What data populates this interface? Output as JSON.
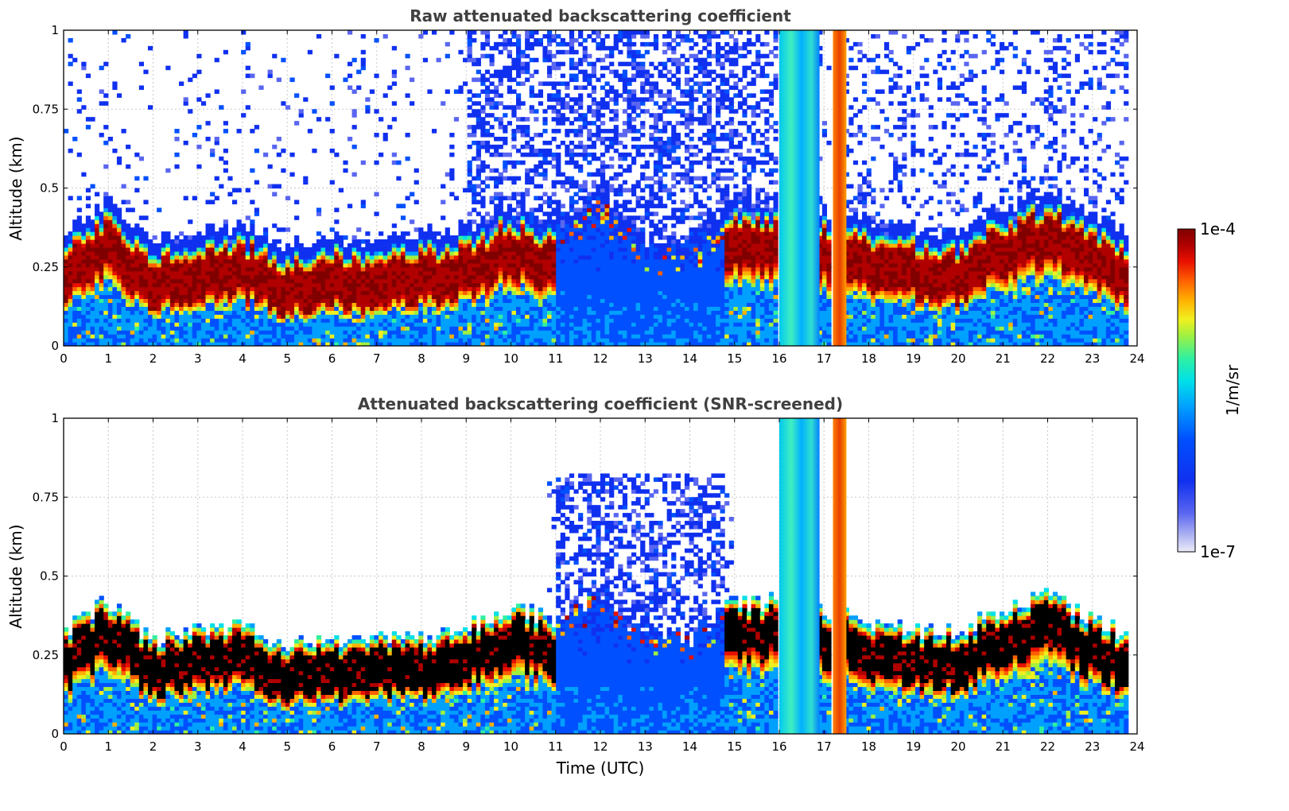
{
  "chart_data": [
    {
      "type": "heatmap",
      "title": "Raw attenuated backscattering coefficient",
      "xlabel": "",
      "ylabel": "Altitude (km)",
      "xlim": [
        0,
        24
      ],
      "ylim": [
        0,
        1
      ],
      "xticks": [
        "0",
        "1",
        "2",
        "3",
        "4",
        "5",
        "6",
        "7",
        "8",
        "9",
        "10",
        "11",
        "12",
        "13",
        "14",
        "15",
        "16",
        "17",
        "18",
        "19",
        "20",
        "21",
        "22",
        "23",
        "24"
      ],
      "yticks": [
        "0",
        "0.25",
        "0.5",
        "0.75",
        "1"
      ],
      "grid": true,
      "screened": false,
      "layer_top_km": {
        "hours": [
          0,
          1,
          2,
          3,
          4,
          5,
          6,
          7,
          8,
          9,
          10,
          11,
          12,
          13,
          14,
          15,
          16,
          18,
          19,
          20,
          21,
          22,
          23,
          23.8
        ],
        "values": [
          0.32,
          0.42,
          0.3,
          0.33,
          0.34,
          0.28,
          0.3,
          0.3,
          0.31,
          0.34,
          0.4,
          0.36,
          0.45,
          0.3,
          0.3,
          0.42,
          0.42,
          0.36,
          0.33,
          0.32,
          0.4,
          0.45,
          0.36,
          0.32
        ]
      },
      "cloud_bands_hours": [
        [
          16.0,
          16.9
        ],
        [
          17.2,
          17.5
        ]
      ]
    },
    {
      "type": "heatmap",
      "title": "Attenuated backscattering coefficient (SNR-screened)",
      "xlabel": "Time (UTC)",
      "ylabel": "Altitude (km)",
      "xlim": [
        0,
        24
      ],
      "ylim": [
        0,
        1
      ],
      "xticks": [
        "0",
        "1",
        "2",
        "3",
        "4",
        "5",
        "6",
        "7",
        "8",
        "9",
        "10",
        "11",
        "12",
        "13",
        "14",
        "15",
        "16",
        "17",
        "18",
        "19",
        "20",
        "21",
        "22",
        "23",
        "24"
      ],
      "yticks": [
        "0",
        "0.25",
        "0.5",
        "0.75",
        "1"
      ],
      "grid": true,
      "screened": true,
      "cloud_bands_hours": [
        [
          16.0,
          16.9
        ],
        [
          17.2,
          17.5
        ]
      ]
    }
  ],
  "colorbar": {
    "label": "1/m/sr",
    "max_label": "1e-4",
    "min_label": "1e-7",
    "scale": "log",
    "colors": [
      "#ececf8",
      "#b0b4f2",
      "#5a66f0",
      "#1030f0",
      "#0050ff",
      "#00a0ff",
      "#00e0e8",
      "#30f0a0",
      "#a0f040",
      "#f0f020",
      "#ffb000",
      "#ff6000",
      "#e81000",
      "#b00000",
      "#800000"
    ]
  }
}
